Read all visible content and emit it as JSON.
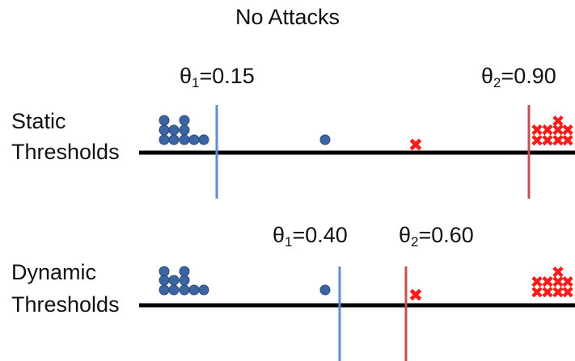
{
  "title": "No Attacks",
  "colors": {
    "benign": "#3c64a0",
    "malicious": "#ff1a1a",
    "theta1_line": "#5b8ed6",
    "theta2_line": "#c0504d",
    "axis": "#000000"
  },
  "rows": [
    {
      "label_line1": "Static",
      "label_line2": "Thresholds",
      "theta1": {
        "symbol": "θ",
        "sub": "1",
        "text": "=0.15",
        "value": 0.15
      },
      "theta2": {
        "symbol": "θ",
        "sub": "2",
        "text": "=0.90",
        "value": 0.9
      }
    },
    {
      "label_line1": "Dynamic",
      "label_line2": "Thresholds",
      "theta1": {
        "symbol": "θ",
        "sub": "1",
        "text": "=0.40",
        "value": 0.4
      },
      "theta2": {
        "symbol": "θ",
        "sub": "2",
        "text": "=0.60",
        "value": 0.6
      }
    }
  ]
}
